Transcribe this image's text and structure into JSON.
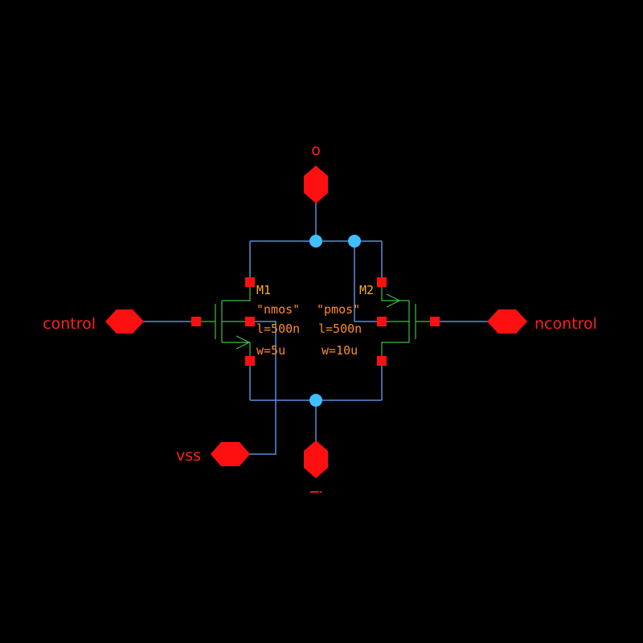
{
  "pins": {
    "top": "o",
    "left": "control",
    "right": "ncontrol",
    "vss": "vss",
    "bottom": "i"
  },
  "devices": {
    "m1": {
      "name": "M1",
      "model": "\"nmos\"",
      "l": "l=500n",
      "w": "w=5u"
    },
    "m2": {
      "name": "M2",
      "model": "\"pmos\"",
      "l": "l=500n",
      "w": "w=10u"
    }
  },
  "colors": {
    "background": "#000000",
    "wire": "#5b8ed8",
    "pin": "#ff1010",
    "device": "#3fbf3f",
    "junction": "#3fbfff",
    "label": "#ff2020",
    "parameter": "#ff8a2a"
  }
}
